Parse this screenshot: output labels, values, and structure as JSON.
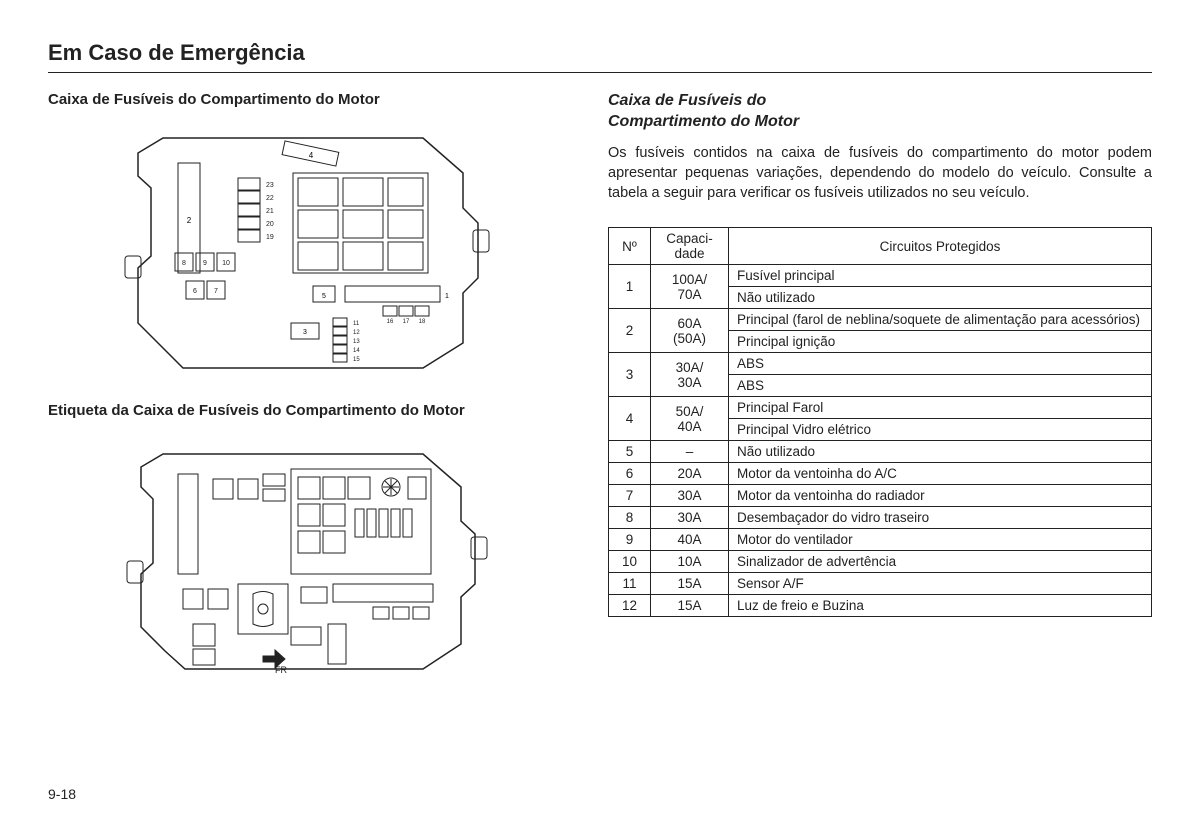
{
  "page": {
    "title": "Em Caso de Emergência",
    "number": "9-18"
  },
  "left": {
    "heading1": "Caixa de Fusíveis do Compartimento do Motor",
    "heading2": "Etiqueta da Caixa de Fusíveis do Compartimento do Motor",
    "diagram1_labels": [
      "1",
      "2",
      "3",
      "4",
      "5",
      "6",
      "7",
      "8",
      "9",
      "10",
      "11",
      "12",
      "13",
      "14",
      "15",
      "16",
      "17",
      "18",
      "19",
      "20",
      "21",
      "22",
      "23"
    ]
  },
  "right": {
    "subheading_line1": "Caixa de Fusíveis do",
    "subheading_line2": "Compartimento do Motor",
    "paragraph": "Os fusíveis contidos na caixa de fusíveis do compartimento do motor podem apresentar pequenas variações, dependendo do modelo do veículo. Consulte a tabela a seguir para verificar os fusíveis utilizados no seu veículo.",
    "table": {
      "headers": {
        "no": "Nº",
        "cap": "Capaci-\ndade",
        "circ": "Circuitos Protegidos"
      },
      "rows": [
        {
          "no": "1",
          "cap": "100A/\n70A",
          "circuits": [
            "Fusível principal",
            "Não utilizado"
          ]
        },
        {
          "no": "2",
          "cap": "60A\n(50A)",
          "circuits": [
            "Principal (farol de neblina/soquete de alimentação para acessórios)",
            "Principal ignição"
          ]
        },
        {
          "no": "3",
          "cap": "30A/\n30A",
          "circuits": [
            "ABS",
            "ABS"
          ]
        },
        {
          "no": "4",
          "cap": "50A/\n40A",
          "circuits": [
            "Principal Farol",
            "Principal Vidro elétrico"
          ]
        },
        {
          "no": "5",
          "cap": "–",
          "circuits": [
            "Não utilizado"
          ]
        },
        {
          "no": "6",
          "cap": "20A",
          "circuits": [
            "Motor da ventoinha do A/C"
          ]
        },
        {
          "no": "7",
          "cap": "30A",
          "circuits": [
            "Motor da ventoinha do radiador"
          ]
        },
        {
          "no": "8",
          "cap": "30A",
          "circuits": [
            "Desembaçador do vidro traseiro"
          ]
        },
        {
          "no": "9",
          "cap": "40A",
          "circuits": [
            "Motor do ventilador"
          ]
        },
        {
          "no": "10",
          "cap": "10A",
          "circuits": [
            "Sinalizador de advertência"
          ]
        },
        {
          "no": "11",
          "cap": "15A",
          "circuits": [
            "Sensor A/F"
          ]
        },
        {
          "no": "12",
          "cap": "15A",
          "circuits": [
            "Luz de freio e Buzina"
          ]
        }
      ]
    }
  },
  "style": {
    "text_color": "#222222",
    "border_color": "#222222",
    "background": "#ffffff"
  }
}
